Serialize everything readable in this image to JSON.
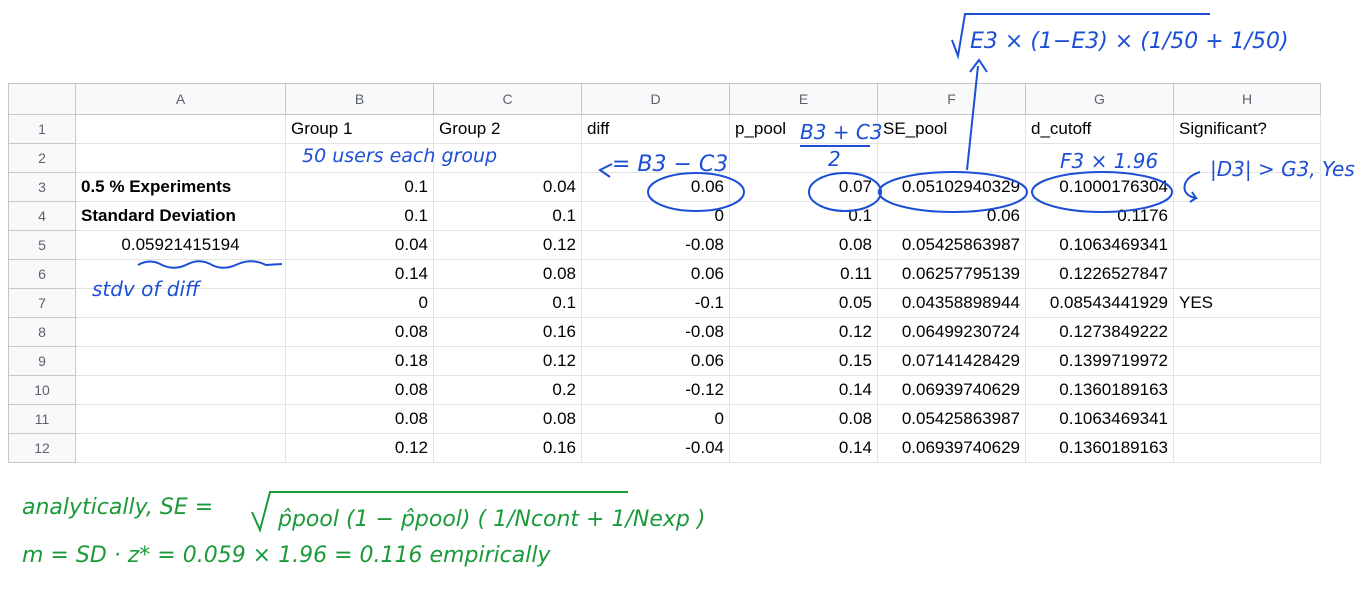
{
  "columns": [
    "A",
    "B",
    "C",
    "D",
    "E",
    "F",
    "G",
    "H"
  ],
  "rows": [
    {
      "n": "1",
      "cells": [
        "",
        "Group 1",
        "Group 2",
        "diff",
        "p_pool",
        "SE_pool",
        "d_cutoff",
        "Significant?"
      ]
    },
    {
      "n": "2",
      "cells": [
        "",
        "",
        "",
        "",
        "",
        "",
        "",
        ""
      ]
    },
    {
      "n": "3",
      "cells": [
        "0.5 % Experiments",
        "0.1",
        "0.04",
        "0.06",
        "0.07",
        "0.05102940329",
        "0.1000176304",
        ""
      ]
    },
    {
      "n": "4",
      "cells": [
        "Standard Deviation",
        "0.1",
        "0.1",
        "0",
        "0.1",
        "0.06",
        "0.1176",
        ""
      ]
    },
    {
      "n": "5",
      "cells": [
        "0.05921415194",
        "0.04",
        "0.12",
        "-0.08",
        "0.08",
        "0.05425863987",
        "0.1063469341",
        ""
      ]
    },
    {
      "n": "6",
      "cells": [
        "",
        "0.14",
        "0.08",
        "0.06",
        "0.11",
        "0.06257795139",
        "0.1226527847",
        ""
      ]
    },
    {
      "n": "7",
      "cells": [
        "",
        "0",
        "0.1",
        "-0.1",
        "0.05",
        "0.04358898944",
        "0.08543441929",
        "YES"
      ]
    },
    {
      "n": "8",
      "cells": [
        "",
        "0.08",
        "0.16",
        "-0.08",
        "0.12",
        "0.06499230724",
        "0.1273849222",
        ""
      ]
    },
    {
      "n": "9",
      "cells": [
        "",
        "0.18",
        "0.12",
        "0.06",
        "0.15",
        "0.07141428429",
        "0.1399719972",
        ""
      ]
    },
    {
      "n": "10",
      "cells": [
        "",
        "0.08",
        "0.2",
        "-0.12",
        "0.14",
        "0.06939740629",
        "0.1360189163",
        ""
      ]
    },
    {
      "n": "11",
      "cells": [
        "",
        "0.08",
        "0.08",
        "0",
        "0.08",
        "0.05425863987",
        "0.1063469341",
        ""
      ]
    },
    {
      "n": "12",
      "cells": [
        "",
        "0.12",
        "0.16",
        "-0.04",
        "0.14",
        "0.06939740629",
        "0.1360189163",
        ""
      ]
    }
  ],
  "annotations": {
    "top_formula": "E3 × (1−E3) × (1/50 + 1/50)",
    "users_note": "50 users each group",
    "diff_formula": "= B3 − C3",
    "ppool_formula_num": "B3 + C3",
    "ppool_formula_den": "2",
    "dcut_formula": "F3 × 1.96",
    "significant_note": "|D3| > G3, Yes",
    "stdv_note": "stdv of diff",
    "analytic_line_1": "analytically,  SE =",
    "analytic_formula": "p̂pool (1 − p̂pool) ( 1/Ncont + 1/Nexp )",
    "empirical_line": "m = SD · z* = 0.059 × 1.96 = 0.116  empirically"
  },
  "colors": {
    "ink_blue": "#1c4fd4",
    "ink_green": "#1c9a3a",
    "header_bg": "#f8f9fa",
    "grid": "#e2e3e3"
  }
}
